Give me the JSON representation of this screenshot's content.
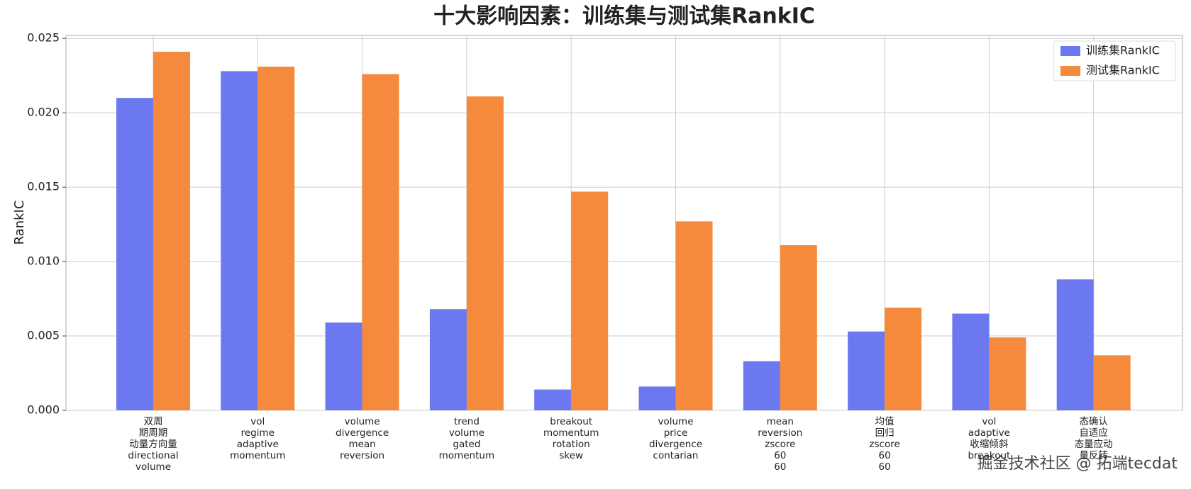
{
  "chart_data": {
    "type": "bar",
    "title": "十大影响因素：训练集与测试集RankIC",
    "y_label": "RankIC",
    "categories": [
      "双周\n期周期\n动量方向量\ndirectional\nvolume",
      "vol\nregime\nadaptive\nmomentum",
      "volume\ndivergence\nmean\nreversion",
      "trend\nvolume\ngated\nmomentum",
      "breakout\nmomentum\nrotation\nskew",
      "volume\nprice\ndivergence\ncontarian",
      "mean\nreversion\nzscore\n60\n60",
      "均值\n回归\nzscore\n60\n60",
      "vol\nadaptive\n收缩倾斜\nbreakout",
      "态确认\n自适应\n态量应动\n量反转"
    ],
    "series": [
      {
        "name": "训练集RankIC",
        "color": "#6b78f0",
        "values": [
          0.021,
          0.0228,
          0.0059,
          0.0068,
          0.0014,
          0.0016,
          0.0033,
          0.0053,
          0.0065,
          0.0088
        ]
      },
      {
        "name": "测试集RankIC",
        "color": "#f58a3c",
        "values": [
          0.0241,
          0.0231,
          0.0226,
          0.0211,
          0.0147,
          0.0127,
          0.0111,
          0.0069,
          0.0049,
          0.0037
        ]
      }
    ],
    "ylim": [
      0,
      0.0252
    ],
    "yticks": [
      {
        "value": 0,
        "label": "0.000"
      },
      {
        "value": 0.005,
        "label": "0.005"
      },
      {
        "value": 0.01,
        "label": "0.010"
      },
      {
        "value": 0.015,
        "label": "0.015"
      },
      {
        "value": 0.02,
        "label": "0.020"
      },
      {
        "value": 0.025,
        "label": "0.025"
      }
    ],
    "grid": true,
    "legend": "upper right",
    "watermark": "掘金技术社区 @ 拓端tecdat"
  }
}
